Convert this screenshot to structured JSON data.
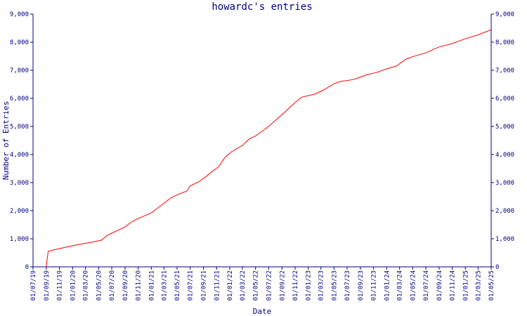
{
  "chart_data": {
    "type": "line",
    "title": "howardc's entries",
    "xlabel": "Date",
    "ylabel": "Number of Entries",
    "ylim": [
      0,
      9000
    ],
    "xlim": [
      "2019-07-01",
      "2025-05-01"
    ],
    "grid": false,
    "y_ticks": [
      "0",
      "1,000",
      "2,000",
      "3,000",
      "4,000",
      "5,000",
      "6,000",
      "7,000",
      "8,000",
      "9,000"
    ],
    "y_tick_values": [
      0,
      1000,
      2000,
      3000,
      4000,
      5000,
      6000,
      7000,
      8000,
      9000
    ],
    "x_ticks": [
      "01/07/19",
      "01/09/19",
      "01/11/19",
      "01/01/20",
      "01/03/20",
      "01/05/20",
      "01/07/20",
      "01/09/20",
      "01/11/20",
      "01/01/21",
      "01/03/21",
      "01/05/21",
      "01/07/21",
      "01/09/21",
      "01/11/21",
      "01/01/22",
      "01/03/22",
      "01/05/22",
      "01/07/22",
      "01/09/22",
      "01/11/22",
      "01/01/23",
      "01/03/23",
      "01/05/23",
      "01/07/23",
      "01/09/23",
      "01/11/23",
      "01/01/24",
      "01/03/24",
      "01/05/24",
      "01/07/24",
      "01/09/24",
      "01/11/24",
      "01/01/25",
      "01/03/25",
      "01/05/25"
    ],
    "x_tick_dates": [
      "2019-07-01",
      "2019-09-01",
      "2019-11-01",
      "2020-01-01",
      "2020-03-01",
      "2020-05-01",
      "2020-07-01",
      "2020-09-01",
      "2020-11-01",
      "2021-01-01",
      "2021-03-01",
      "2021-05-01",
      "2021-07-01",
      "2021-09-01",
      "2021-11-01",
      "2022-01-01",
      "2022-03-01",
      "2022-05-01",
      "2022-07-01",
      "2022-09-01",
      "2022-11-01",
      "2023-01-01",
      "2023-03-01",
      "2023-05-01",
      "2023-07-01",
      "2023-09-01",
      "2023-11-01",
      "2024-01-01",
      "2024-03-01",
      "2024-05-01",
      "2024-07-01",
      "2024-09-01",
      "2024-11-01",
      "2025-01-01",
      "2025-03-01",
      "2025-05-01"
    ],
    "series": [
      {
        "color": "#ff0000",
        "points": [
          {
            "x": "2019-08-31",
            "y": 0
          },
          {
            "x": "2019-09-05",
            "y": 300
          },
          {
            "x": "2019-09-10",
            "y": 560
          },
          {
            "x": "2019-10-15",
            "y": 620
          },
          {
            "x": "2019-12-01",
            "y": 700
          },
          {
            "x": "2020-02-01",
            "y": 800
          },
          {
            "x": "2020-04-01",
            "y": 880
          },
          {
            "x": "2020-05-15",
            "y": 950
          },
          {
            "x": "2020-06-10",
            "y": 1120
          },
          {
            "x": "2020-07-01",
            "y": 1200
          },
          {
            "x": "2020-09-01",
            "y": 1420
          },
          {
            "x": "2020-10-01",
            "y": 1600
          },
          {
            "x": "2020-11-01",
            "y": 1720
          },
          {
            "x": "2021-01-01",
            "y": 1920
          },
          {
            "x": "2021-02-01",
            "y": 2100
          },
          {
            "x": "2021-04-01",
            "y": 2450
          },
          {
            "x": "2021-05-01",
            "y": 2560
          },
          {
            "x": "2021-06-15",
            "y": 2700
          },
          {
            "x": "2021-07-01",
            "y": 2880
          },
          {
            "x": "2021-08-15",
            "y": 3050
          },
          {
            "x": "2021-09-15",
            "y": 3230
          },
          {
            "x": "2021-10-15",
            "y": 3420
          },
          {
            "x": "2021-11-10",
            "y": 3560
          },
          {
            "x": "2021-12-10",
            "y": 3900
          },
          {
            "x": "2022-01-10",
            "y": 4100
          },
          {
            "x": "2022-03-01",
            "y": 4320
          },
          {
            "x": "2022-04-01",
            "y": 4550
          },
          {
            "x": "2022-05-01",
            "y": 4660
          },
          {
            "x": "2022-07-01",
            "y": 5000
          },
          {
            "x": "2022-09-01",
            "y": 5420
          },
          {
            "x": "2022-11-01",
            "y": 5850
          },
          {
            "x": "2022-12-01",
            "y": 6040
          },
          {
            "x": "2023-02-01",
            "y": 6150
          },
          {
            "x": "2023-03-15",
            "y": 6300
          },
          {
            "x": "2023-05-01",
            "y": 6520
          },
          {
            "x": "2023-06-01",
            "y": 6600
          },
          {
            "x": "2023-08-01",
            "y": 6670
          },
          {
            "x": "2023-10-01",
            "y": 6840
          },
          {
            "x": "2023-11-15",
            "y": 6920
          },
          {
            "x": "2024-01-01",
            "y": 7050
          },
          {
            "x": "2024-02-15",
            "y": 7150
          },
          {
            "x": "2024-04-01",
            "y": 7400
          },
          {
            "x": "2024-05-01",
            "y": 7480
          },
          {
            "x": "2024-07-01",
            "y": 7620
          },
          {
            "x": "2024-09-01",
            "y": 7830
          },
          {
            "x": "2024-11-01",
            "y": 7950
          },
          {
            "x": "2025-01-01",
            "y": 8120
          },
          {
            "x": "2025-03-01",
            "y": 8260
          },
          {
            "x": "2025-05-01",
            "y": 8440
          }
        ]
      }
    ]
  }
}
